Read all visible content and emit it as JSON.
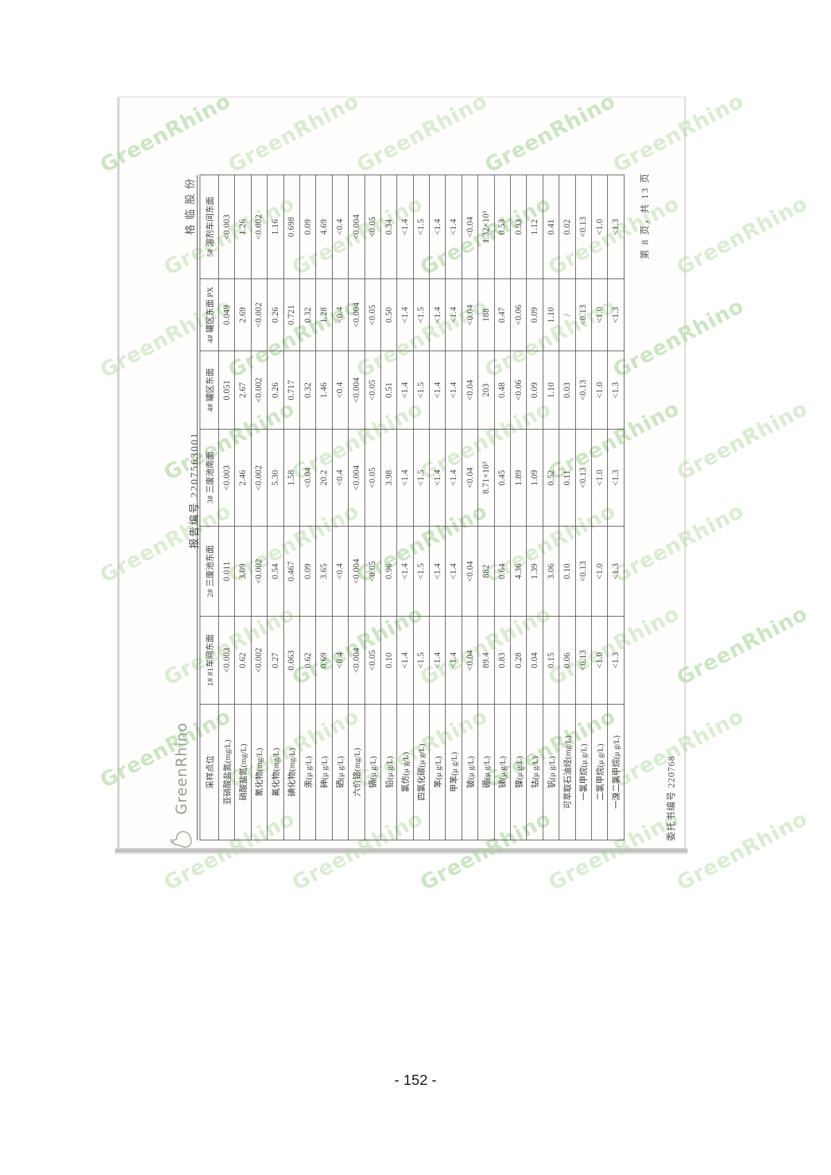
{
  "scan": {
    "logo_text": "GreenRhino",
    "report_no": "报告编号 2207563001",
    "company_header": "格临股份",
    "page_note": "第 8 页，共 13 页",
    "commission_no": "委托书编号 220768",
    "watermark_text": "GreenRhino"
  },
  "footer": {
    "page_number": "- 152 -"
  },
  "table": {
    "header": [
      "采样点位",
      "1# #1车间东面",
      "2# 三废池东面",
      "3# 三废池南面",
      "4# 罐区东面",
      "4# 罐区东面 PX",
      "5# 溶剂车间东面"
    ],
    "rows": [
      {
        "param": "亚硝酸盐氮(mg/L)",
        "values": [
          "<0.003",
          "0.011",
          "<0.003",
          "0.051",
          "0.049",
          "<0.003"
        ]
      },
      {
        "param": "硝酸盐氮(mg/L)",
        "values": [
          "0.62",
          "3.09",
          "2.46",
          "2.67",
          "2.69",
          "1.26"
        ]
      },
      {
        "param": "氰化物(mg/L)",
        "values": [
          "<0.002",
          "<0.002",
          "<0.002",
          "<0.002",
          "<0.002",
          "<0.002"
        ]
      },
      {
        "param": "氟化物(mg/L)",
        "values": [
          "0.27",
          "0.54",
          "5.30",
          "0.26",
          "0.26",
          "1.16"
        ]
      },
      {
        "param": "碘化物(mg/L)",
        "values": [
          "0.063",
          "0.467",
          "1.58",
          "0.717",
          "0.721",
          "0.698"
        ]
      },
      {
        "param": "汞(μ g/L)",
        "values": [
          "0.62",
          "0.09",
          "<0.04",
          "0.32",
          "0.32",
          "0.09"
        ]
      },
      {
        "param": "砷(μ g/L)",
        "values": [
          "0.69",
          "3.65",
          "20.2",
          "1.46",
          "1.28",
          "4.69"
        ]
      },
      {
        "param": "硒(μ g/L)",
        "values": [
          "<0.4",
          "<0.4",
          "<0.4",
          "<0.4",
          "<0.4",
          "<0.4"
        ]
      },
      {
        "param": "六价铬(mg/L)",
        "values": [
          "<0.004",
          "<0.004",
          "<0.004",
          "<0.004",
          "<0.004",
          "<0.004"
        ]
      },
      {
        "param": "镉(μ g/L)",
        "values": [
          "<0.05",
          "<0.05",
          "<0.05",
          "<0.05",
          "<0.05",
          "<0.05"
        ]
      },
      {
        "param": "铅(μ g/L)",
        "values": [
          "0.10",
          "0.96",
          "3.98",
          "0.51",
          "0.50",
          "0.34"
        ]
      },
      {
        "param": "氯仿(μ g/L)",
        "values": [
          "<1.4",
          "<1.4",
          "<1.4",
          "<1.4",
          "<1.4",
          "<1.4"
        ]
      },
      {
        "param": "四氯化碳(μ g/L)",
        "values": [
          "<1.5",
          "<1.5",
          "<1.5",
          "<1.5",
          "<1.5",
          "<1.5"
        ]
      },
      {
        "param": "苯(μ g/L)",
        "values": [
          "<1.4",
          "<1.4",
          "<1.4",
          "<1.4",
          "<1.4",
          "<1.4"
        ]
      },
      {
        "param": "甲苯(μ g/L)",
        "values": [
          "<1.4",
          "<1.4",
          "<1.4",
          "<1.4",
          "<1.4",
          "<1.4"
        ]
      },
      {
        "param": "铍(μ g/L)",
        "values": [
          "<0.04",
          "<0.04",
          "<0.04",
          "<0.04",
          "<0.04",
          "<0.04"
        ]
      },
      {
        "param": "硼(μ g/L)",
        "values": [
          "89.4",
          "882",
          "8.71×10³",
          "203",
          "188",
          "1.32×10³"
        ]
      },
      {
        "param": "锑(μ g/L)",
        "values": [
          "0.83",
          "0.64",
          "0.45",
          "0.48",
          "0.47",
          "0.53"
        ]
      },
      {
        "param": "镍(μ g/L)",
        "values": [
          "0.28",
          "4.36",
          "1.89",
          "<0.06",
          "<0.06",
          "0.93"
        ]
      },
      {
        "param": "钴(μ g/L)",
        "values": [
          "0.04",
          "1.39",
          "1.09",
          "0.09",
          "0.09",
          "1.12"
        ]
      },
      {
        "param": "钒(μ g/L)",
        "values": [
          "0.15",
          "3.06",
          "0.52",
          "1.10",
          "1.10",
          "0.41"
        ]
      },
      {
        "param": "可萃取石油烃(mg/L)",
        "values": [
          "0.06",
          "0.10",
          "0.11",
          "0.03",
          "/",
          "0.02"
        ]
      },
      {
        "param": "一氯甲烷(μ g/L)",
        "values": [
          "<0.13",
          "<0.13",
          "<0.13",
          "<0.13",
          "<0.13",
          "<0.13"
        ]
      },
      {
        "param": "二氯甲烷(μ g/L)",
        "values": [
          "<1.0",
          "<1.0",
          "<1.0",
          "<1.0",
          "<1.0",
          "<1.0"
        ]
      },
      {
        "param": "一溴二氯甲烷(μ g/L)",
        "values": [
          "<1.3",
          "<1.3",
          "<1.3",
          "<1.3",
          "<1.3",
          "<1.3"
        ]
      }
    ]
  }
}
